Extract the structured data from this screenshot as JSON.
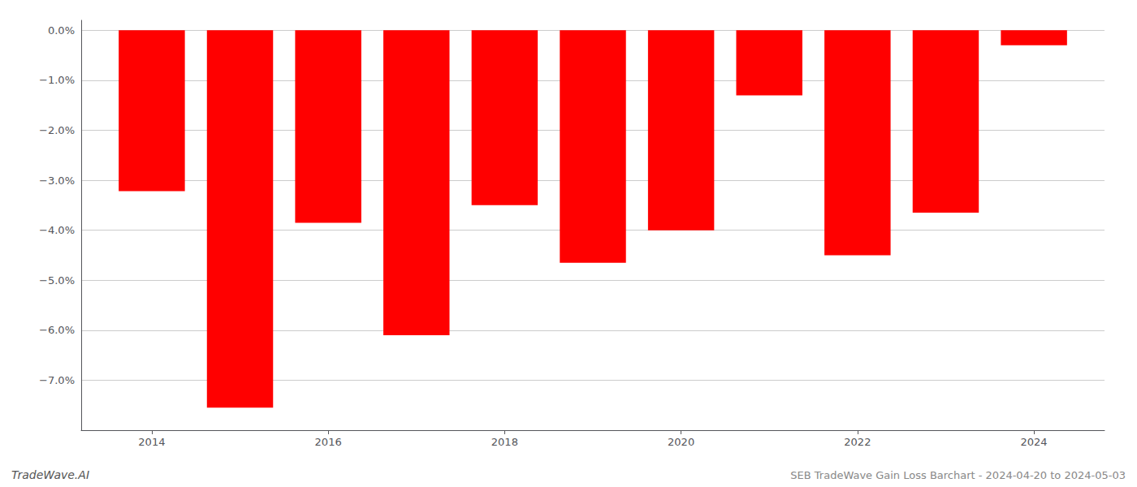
{
  "chart_data": {
    "type": "bar",
    "x": [
      2014,
      2015,
      2016,
      2017,
      2018,
      2019,
      2020,
      2021,
      2022,
      2023,
      2024
    ],
    "values": [
      -0.0322,
      -0.0755,
      -0.0385,
      -0.061,
      -0.035,
      -0.0465,
      -0.04,
      -0.013,
      -0.045,
      -0.0365,
      -0.003
    ],
    "color": "#ff0000",
    "xlim": [
      2013.2,
      2024.8
    ],
    "xticks": [
      2014,
      2016,
      2018,
      2020,
      2022,
      2024
    ],
    "ylim": [
      -0.08,
      0.002
    ],
    "yticks": [
      {
        "value": 0.0,
        "label": "0.0%"
      },
      {
        "value": -0.01,
        "label": "−1.0%"
      },
      {
        "value": -0.02,
        "label": "−2.0%"
      },
      {
        "value": -0.03,
        "label": "−3.0%"
      },
      {
        "value": -0.04,
        "label": "−4.0%"
      },
      {
        "value": -0.05,
        "label": "−5.0%"
      },
      {
        "value": -0.06,
        "label": "−6.0%"
      },
      {
        "value": -0.07,
        "label": "−7.0%"
      }
    ],
    "grid": true,
    "annotations": [
      "TradeWave.AI",
      "SEB TradeWave Gain Loss Barchart - 2024-04-20 to 2024-05-03"
    ]
  }
}
